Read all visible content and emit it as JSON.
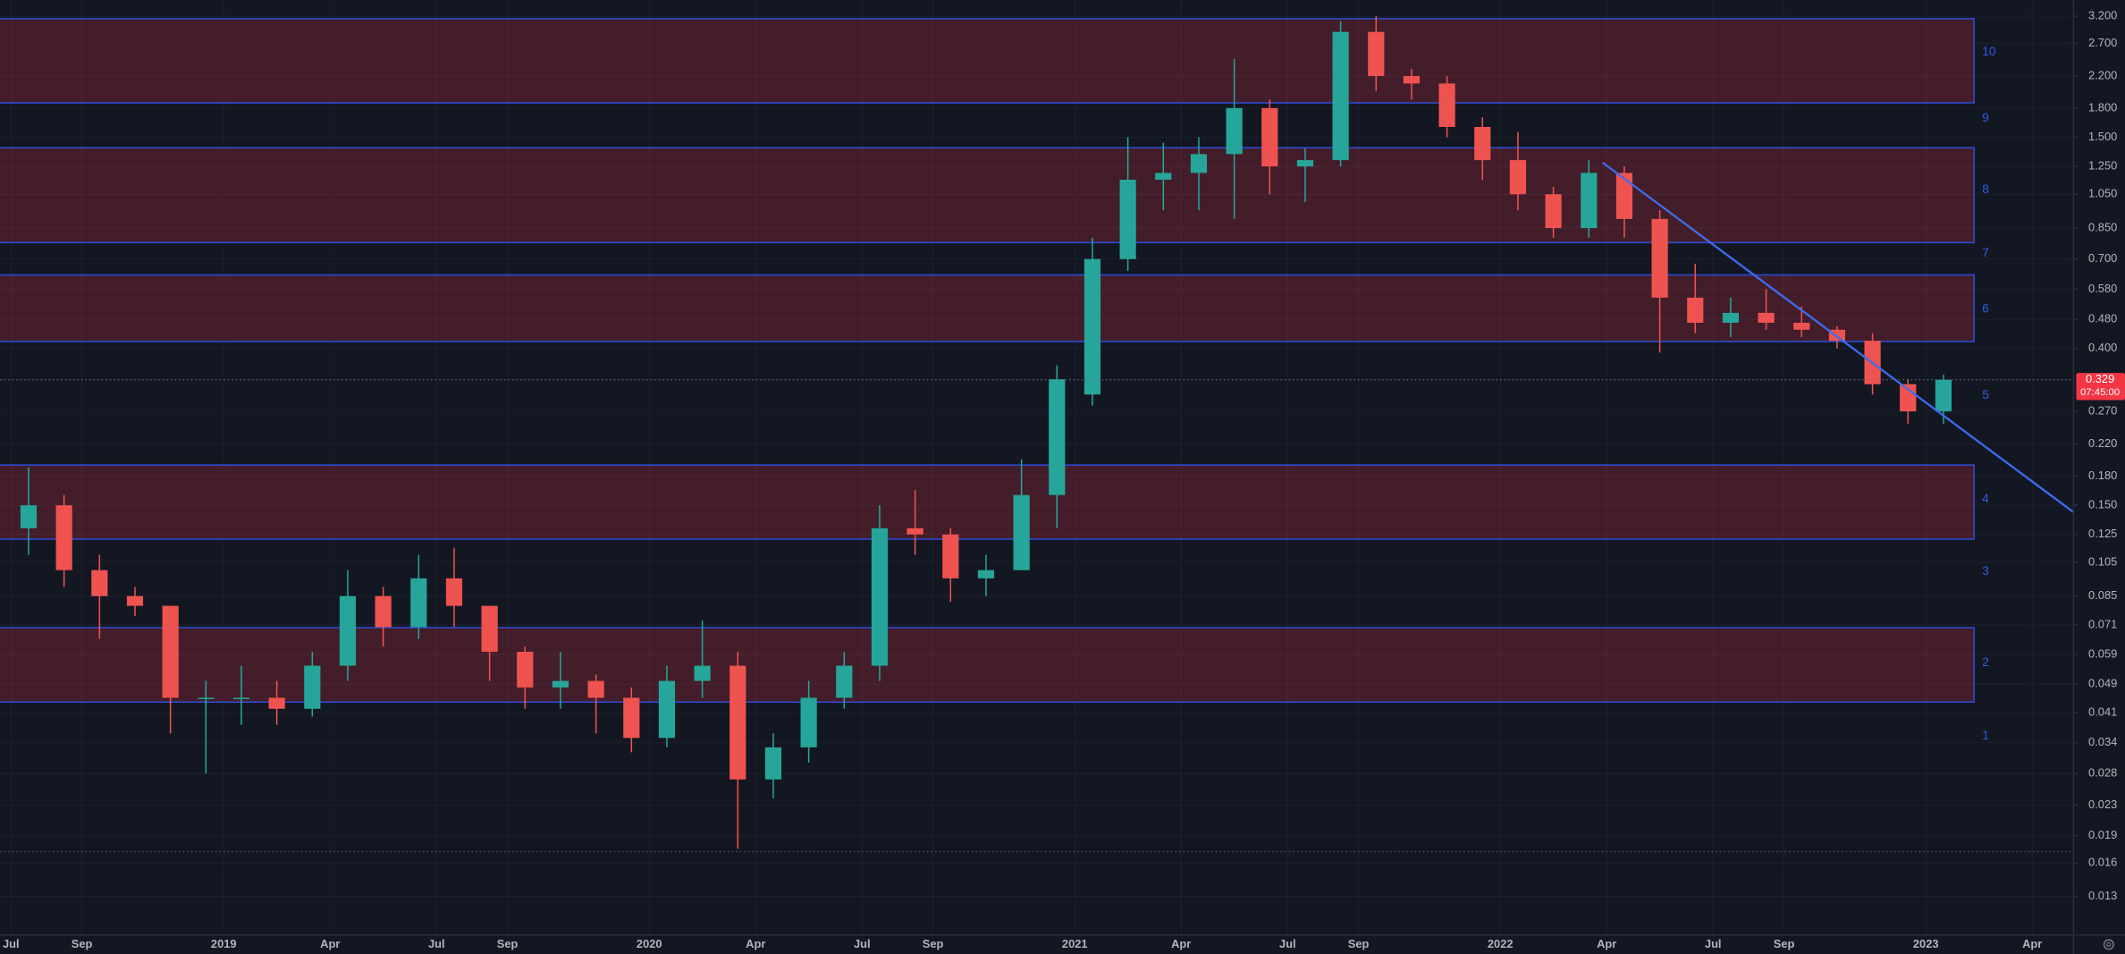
{
  "chart_data": {
    "type": "candlestick",
    "log_scale": true,
    "grid": true,
    "background": "#131722",
    "grid_color": "#1e2230",
    "up_color": "#26a69a",
    "down_color": "#ef5350",
    "zone_fill": "rgba(242,54,69,0.22)",
    "zone_border": "#2e4cd8",
    "trend_color": "#3d6cf0",
    "xlim": [
      "2018-06-22",
      "2023-05-06"
    ],
    "ylim": [
      0.0102,
      3.54
    ],
    "xticks": [
      {
        "value": "2018-07",
        "label": "Jul"
      },
      {
        "value": "2018-09",
        "label": "Sep"
      },
      {
        "value": "2019-01",
        "label": "2019"
      },
      {
        "value": "2019-04",
        "label": "Apr"
      },
      {
        "value": "2019-07",
        "label": "Jul"
      },
      {
        "value": "2019-09",
        "label": "Sep"
      },
      {
        "value": "2020-01",
        "label": "2020"
      },
      {
        "value": "2020-04",
        "label": "Apr"
      },
      {
        "value": "2020-07",
        "label": "Jul"
      },
      {
        "value": "2020-09",
        "label": "Sep"
      },
      {
        "value": "2021-01",
        "label": "2021"
      },
      {
        "value": "2021-04",
        "label": "Apr"
      },
      {
        "value": "2021-07",
        "label": "Jul"
      },
      {
        "value": "2021-09",
        "label": "Sep"
      },
      {
        "value": "2022-01",
        "label": "2022"
      },
      {
        "value": "2022-04",
        "label": "Apr"
      },
      {
        "value": "2022-07",
        "label": "Jul"
      },
      {
        "value": "2022-09",
        "label": "Sep"
      },
      {
        "value": "2023-01",
        "label": "2023"
      },
      {
        "value": "2023-04",
        "label": "Apr"
      }
    ],
    "yticks": [
      {
        "value": 3.2,
        "label": "3.200"
      },
      {
        "value": 2.7,
        "label": "2.700"
      },
      {
        "value": 2.2,
        "label": "2.200"
      },
      {
        "value": 1.8,
        "label": "1.800"
      },
      {
        "value": 1.5,
        "label": "1.500"
      },
      {
        "value": 1.25,
        "label": "1.250"
      },
      {
        "value": 1.05,
        "label": "1.050"
      },
      {
        "value": 0.85,
        "label": "0.850"
      },
      {
        "value": 0.7,
        "label": "0.700"
      },
      {
        "value": 0.58,
        "label": "0.580"
      },
      {
        "value": 0.48,
        "label": "0.480"
      },
      {
        "value": 0.4,
        "label": "0.400"
      },
      {
        "value": 0.27,
        "label": "0.270"
      },
      {
        "value": 0.22,
        "label": "0.220"
      },
      {
        "value": 0.18,
        "label": "0.180"
      },
      {
        "value": 0.15,
        "label": "0.150"
      },
      0.125,
      0.105,
      0.085,
      0.071,
      0.059,
      0.049,
      0.041,
      0.034,
      0.028,
      0.023,
      0.019,
      0.016,
      0.013
    ],
    "candles": {
      "x": [
        "2018-07",
        "2018-08",
        "2018-09",
        "2018-10",
        "2018-11",
        "2018-12",
        "2019-01",
        "2019-02",
        "2019-03",
        "2019-04",
        "2019-05",
        "2019-06",
        "2019-07",
        "2019-08",
        "2019-09",
        "2019-10",
        "2019-11",
        "2019-12",
        "2020-01",
        "2020-02",
        "2020-03",
        "2020-04",
        "2020-05",
        "2020-06",
        "2020-07",
        "2020-08",
        "2020-09",
        "2020-10",
        "2020-11",
        "2020-12",
        "2021-01",
        "2021-02",
        "2021-03",
        "2021-04",
        "2021-05",
        "2021-06",
        "2021-07",
        "2021-08",
        "2021-09",
        "2021-10",
        "2021-11",
        "2021-12",
        "2022-01",
        "2022-02",
        "2022-03",
        "2022-04",
        "2022-05",
        "2022-06",
        "2022-07",
        "2022-08",
        "2022-09",
        "2022-10",
        "2022-11",
        "2022-12",
        "2023-01"
      ],
      "open": [
        0.13,
        0.15,
        0.1,
        0.085,
        0.08,
        0.045,
        0.045,
        0.045,
        0.042,
        0.055,
        0.085,
        0.07,
        0.095,
        0.08,
        0.06,
        0.048,
        0.05,
        0.045,
        0.035,
        0.05,
        0.055,
        0.027,
        0.033,
        0.045,
        0.055,
        0.13,
        0.125,
        0.095,
        0.1,
        0.16,
        0.3,
        0.7,
        1.15,
        1.2,
        1.35,
        1.8,
        1.25,
        1.3,
        2.9,
        2.2,
        2.1,
        1.6,
        1.3,
        1.05,
        0.85,
        1.2,
        0.9,
        0.55,
        0.47,
        0.5,
        0.47,
        0.45,
        0.42,
        0.32,
        0.27
      ],
      "high": [
        0.19,
        0.16,
        0.11,
        0.09,
        0.08,
        0.05,
        0.055,
        0.05,
        0.06,
        0.1,
        0.09,
        0.11,
        0.115,
        0.08,
        0.062,
        0.06,
        0.052,
        0.048,
        0.055,
        0.073,
        0.06,
        0.036,
        0.05,
        0.06,
        0.15,
        0.165,
        0.13,
        0.11,
        0.2,
        0.36,
        0.8,
        1.5,
        1.45,
        1.5,
        2.45,
        1.9,
        1.4,
        3.1,
        3.2,
        2.3,
        2.2,
        1.7,
        1.55,
        1.1,
        1.3,
        1.25,
        0.95,
        0.68,
        0.55,
        0.58,
        0.52,
        0.46,
        0.44,
        0.33,
        0.34
      ],
      "low": [
        0.11,
        0.09,
        0.065,
        0.075,
        0.036,
        0.028,
        0.038,
        0.038,
        0.04,
        0.05,
        0.062,
        0.065,
        0.07,
        0.05,
        0.042,
        0.042,
        0.036,
        0.032,
        0.033,
        0.045,
        0.0175,
        0.024,
        0.03,
        0.042,
        0.05,
        0.11,
        0.082,
        0.085,
        0.1,
        0.13,
        0.28,
        0.65,
        0.95,
        0.95,
        0.9,
        1.05,
        1.0,
        1.25,
        2.0,
        1.9,
        1.5,
        1.15,
        0.95,
        0.8,
        0.8,
        0.8,
        0.39,
        0.44,
        0.43,
        0.45,
        0.43,
        0.4,
        0.3,
        0.25,
        0.25
      ],
      "close": [
        0.15,
        0.1,
        0.085,
        0.08,
        0.045,
        0.045,
        0.045,
        0.042,
        0.055,
        0.085,
        0.07,
        0.095,
        0.08,
        0.06,
        0.048,
        0.05,
        0.045,
        0.035,
        0.05,
        0.055,
        0.027,
        0.033,
        0.045,
        0.055,
        0.13,
        0.125,
        0.095,
        0.1,
        0.16,
        0.33,
        0.7,
        1.15,
        1.2,
        1.35,
        1.8,
        1.25,
        1.3,
        2.9,
        2.2,
        2.1,
        1.6,
        1.3,
        1.05,
        0.85,
        1.2,
        0.9,
        0.55,
        0.47,
        0.5,
        0.47,
        0.45,
        0.42,
        0.32,
        0.27,
        0.329
      ]
    },
    "zones": [
      {
        "from": 1.86,
        "to": 3.15,
        "end": "2023-02-12"
      },
      {
        "from": 0.776,
        "to": 1.405,
        "end": "2023-02-12"
      },
      {
        "from": 0.418,
        "to": 0.634,
        "end": "2023-02-12"
      },
      {
        "from": 0.1214,
        "to": 0.193,
        "end": "2023-02-12"
      },
      {
        "from": 0.0438,
        "to": 0.0698,
        "end": "2023-02-12"
      }
    ],
    "annotations": [
      {
        "text": "10",
        "price": 2.55
      },
      {
        "text": "9",
        "price": 1.69
      },
      {
        "text": "8",
        "price": 1.08
      },
      {
        "text": "7",
        "price": 0.725
      },
      {
        "text": "6",
        "price": 0.512
      },
      {
        "text": "5",
        "price": 0.298
      },
      {
        "text": "4",
        "price": 0.156
      },
      {
        "text": "3",
        "price": 0.0989
      },
      {
        "text": "2",
        "price": 0.056
      },
      {
        "text": "1",
        "price": 0.0354
      }
    ],
    "trendline": {
      "start": [
        "2022-03-28",
        1.28
      ],
      "end": [
        "2023-05-06",
        0.1437
      ]
    },
    "low_line": 0.0172,
    "last_price": 0.329,
    "countdown": "07:45:00"
  }
}
